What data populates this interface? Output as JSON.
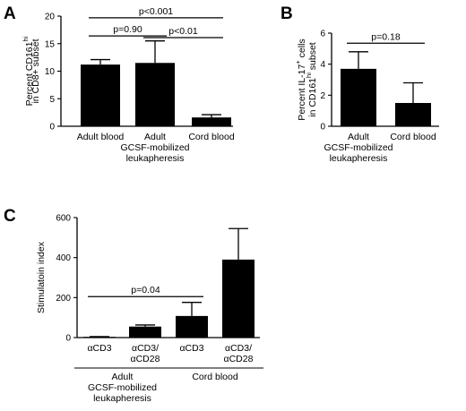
{
  "chart_data": [
    {
      "panel": "A",
      "type": "bar",
      "ylabel": {
        "prefix": "Percent CD161",
        "sup": "hi",
        "line2": "in CD8+ subset"
      },
      "yticks": [
        0,
        5,
        10,
        15,
        20
      ],
      "ylim": [
        0,
        20
      ],
      "categories": [
        "Adult blood",
        "Adult",
        "Cord blood"
      ],
      "category_sublabels": [
        "",
        "GCSF-mobilized",
        ""
      ],
      "category_sublabels2": [
        "",
        "leukapheresis",
        ""
      ],
      "values": [
        11.2,
        11.5,
        1.6
      ],
      "errors": [
        0.9,
        4.0,
        0.5
      ],
      "significance": [
        {
          "label": "p=0.90",
          "from": 0,
          "to": 1,
          "y": 16.4
        },
        {
          "label": "p<0.01",
          "from": 1,
          "to": 2,
          "y": 16.1
        },
        {
          "label": "p<0.001",
          "from": 0,
          "to": 2,
          "y": 19.7
        }
      ]
    },
    {
      "panel": "B",
      "type": "bar",
      "ylabel": {
        "prefix": "Percent IL-17",
        "sup": "+",
        "suffix": " cells",
        "line2prefix": "in CD161",
        "line2sup": "hi",
        "line2suffix": " subset"
      },
      "yticks": [
        0,
        2,
        4,
        6
      ],
      "ylim": [
        0,
        6
      ],
      "categories": [
        "Adult",
        "Cord blood"
      ],
      "category_sublabels": [
        "GCSF-mobilized",
        ""
      ],
      "category_sublabels2": [
        "leukapheresis",
        ""
      ],
      "values": [
        3.7,
        1.5
      ],
      "errors": [
        1.1,
        1.3
      ],
      "significance": [
        {
          "label": "p=0.18",
          "from": 0,
          "to": 1,
          "y": 5.35
        }
      ]
    },
    {
      "panel": "C",
      "type": "bar",
      "ylabel": "Stimulatoin index",
      "yticks": [
        0,
        200,
        400,
        600
      ],
      "ylim": [
        0,
        600
      ],
      "categories": [
        "αCD3",
        "αCD3/αCD28",
        "αCD3",
        "αCD3/αCD28"
      ],
      "category_lines": [
        [
          "αCD3"
        ],
        [
          "αCD3/",
          "αCD28"
        ],
        [
          "αCD3"
        ],
        [
          "αCD3/",
          "αCD28"
        ]
      ],
      "values": [
        3,
        55,
        108,
        390
      ],
      "errors": [
        2,
        8,
        68,
        155
      ],
      "groups": [
        {
          "label_lines": [
            "Adult",
            "GCSF-mobilized",
            "leukapheresis"
          ],
          "from": 0,
          "to": 1
        },
        {
          "label_lines": [
            "Cord blood"
          ],
          "from": 2,
          "to": 3
        }
      ],
      "significance": [
        {
          "label": "p=0.04",
          "from": 0,
          "to": 2,
          "y": 205
        }
      ]
    }
  ]
}
